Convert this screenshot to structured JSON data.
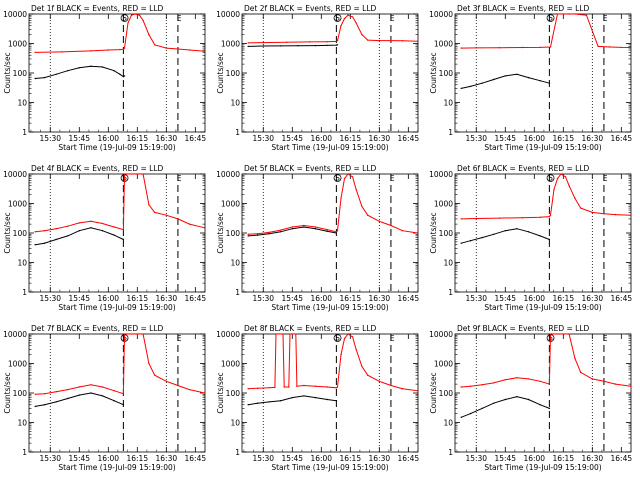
{
  "colors": {
    "events": "#000000",
    "lld": "#ff0000",
    "axes": "#000000"
  },
  "common": {
    "ylabel": "Counts/sec",
    "xlabel": "Start Time (19-Jul-09 15:19:00)",
    "yticks": [
      "1",
      "10",
      "100",
      "1000",
      "10000"
    ],
    "xticks": [
      "15:30",
      "15:45",
      "16:00",
      "16:15",
      "16:30",
      "16:45"
    ],
    "marker_s": "S",
    "marker_e": "E"
  },
  "chart_data": [
    {
      "type": "line",
      "scale_y": "log",
      "ylim": [
        1,
        10000
      ],
      "xlim": [
        15.3167,
        16.8333
      ],
      "title": "Det 1f BLACK = Events, RED = LLD",
      "series": [
        {
          "name": "Events",
          "color": "#000000",
          "x": [
            15.37,
            15.45,
            15.55,
            15.65,
            15.75,
            15.85,
            15.95,
            16.05,
            16.1,
            16.13,
            16.14
          ],
          "y": [
            65,
            70,
            90,
            120,
            150,
            170,
            160,
            120,
            90,
            75,
            80
          ]
        },
        {
          "name": "LLD",
          "color": "#ff0000",
          "x": [
            15.37,
            15.6,
            15.85,
            16.0,
            16.1,
            16.13,
            16.14,
            16.17,
            16.2,
            16.23,
            16.27,
            16.3,
            16.35,
            16.4,
            16.5,
            16.6,
            16.7,
            16.83
          ],
          "y": [
            500,
            520,
            560,
            600,
            620,
            640,
            700,
            5000,
            9000,
            10000,
            9000,
            6000,
            2000,
            900,
            700,
            650,
            600,
            550
          ]
        }
      ]
    },
    {
      "type": "line",
      "scale_y": "log",
      "ylim": [
        1,
        10000
      ],
      "xlim": [
        15.3167,
        16.8333
      ],
      "title": "Det 2f BLACK = Events, RED = LLD",
      "series": [
        {
          "name": "Events",
          "color": "#000000",
          "x": [
            15.37,
            15.5,
            15.65,
            15.8,
            15.95,
            16.05,
            16.13,
            16.14
          ],
          "y": [
            800,
            820,
            830,
            840,
            850,
            860,
            880,
            900
          ]
        },
        {
          "name": "LLD",
          "color": "#ff0000",
          "x": [
            15.37,
            15.5,
            15.7,
            15.9,
            16.05,
            16.13,
            16.14,
            16.17,
            16.2,
            16.23,
            16.27,
            16.3,
            16.35,
            16.4,
            16.5,
            16.6,
            16.7,
            16.83
          ],
          "y": [
            1050,
            1070,
            1100,
            1130,
            1150,
            1180,
            1250,
            4000,
            7000,
            9000,
            8000,
            5000,
            2000,
            1300,
            1250,
            1250,
            1230,
            1200
          ]
        }
      ]
    },
    {
      "type": "line",
      "scale_y": "log",
      "ylim": [
        1,
        10000
      ],
      "xlim": [
        15.3167,
        16.8333
      ],
      "title": "Det 3f BLACK = Events, RED = LLD",
      "series": [
        {
          "name": "Events",
          "color": "#000000",
          "x": [
            15.37,
            15.45,
            15.55,
            15.65,
            15.75,
            15.85,
            15.95,
            16.05,
            16.13
          ],
          "y": [
            30,
            35,
            45,
            60,
            80,
            90,
            70,
            55,
            45
          ]
        },
        {
          "name": "LLD",
          "color": "#ff0000",
          "x": [
            15.37,
            15.5,
            15.7,
            15.9,
            16.05,
            16.14,
            16.2,
            16.25,
            16.3,
            16.35,
            16.45,
            16.55,
            16.65,
            16.75,
            16.83
          ],
          "y": [
            700,
            710,
            720,
            730,
            740,
            760,
            10000,
            10000,
            10000,
            10000,
            9000,
            800,
            760,
            740,
            730
          ]
        }
      ]
    },
    {
      "type": "line",
      "scale_y": "log",
      "ylim": [
        1,
        10000
      ],
      "xlim": [
        15.3167,
        16.8333
      ],
      "title": "Det 4f BLACK = Events, RED = LLD",
      "series": [
        {
          "name": "Events",
          "color": "#000000",
          "x": [
            15.37,
            15.45,
            15.55,
            15.65,
            15.75,
            15.85,
            15.95,
            16.05,
            16.13
          ],
          "y": [
            40,
            45,
            60,
            80,
            120,
            150,
            120,
            85,
            60
          ]
        },
        {
          "name": "LLD",
          "color": "#ff0000",
          "x": [
            15.37,
            15.45,
            15.55,
            15.65,
            15.75,
            15.85,
            15.95,
            16.05,
            16.13,
            16.14,
            16.2,
            16.3,
            16.35,
            16.4,
            16.5,
            16.6,
            16.7,
            16.83
          ],
          "y": [
            110,
            120,
            140,
            170,
            220,
            250,
            210,
            160,
            130,
            10000,
            10000,
            10000,
            900,
            500,
            400,
            300,
            200,
            150
          ]
        }
      ]
    },
    {
      "type": "line",
      "scale_y": "log",
      "ylim": [
        1,
        10000
      ],
      "xlim": [
        15.3167,
        16.8333
      ],
      "title": "Det 5f BLACK = Events, RED = LLD",
      "series": [
        {
          "name": "Events",
          "color": "#000000",
          "x": [
            15.37,
            15.45,
            15.55,
            15.65,
            15.75,
            15.85,
            15.95,
            16.05,
            16.13
          ],
          "y": [
            80,
            85,
            95,
            110,
            140,
            160,
            140,
            115,
            100
          ]
        },
        {
          "name": "LLD",
          "color": "#ff0000",
          "x": [
            15.37,
            15.45,
            15.55,
            15.65,
            15.75,
            15.85,
            15.95,
            16.05,
            16.13,
            16.14,
            16.17,
            16.2,
            16.23,
            16.27,
            16.3,
            16.35,
            16.4,
            16.5,
            16.6,
            16.7,
            16.83
          ],
          "y": [
            90,
            95,
            105,
            125,
            160,
            180,
            160,
            130,
            110,
            120,
            1500,
            7000,
            10000,
            8000,
            3000,
            800,
            400,
            250,
            180,
            120,
            100
          ]
        }
      ]
    },
    {
      "type": "line",
      "scale_y": "log",
      "ylim": [
        1,
        10000
      ],
      "xlim": [
        15.3167,
        16.8333
      ],
      "title": "Det 6f BLACK = Events, RED = LLD",
      "series": [
        {
          "name": "Events",
          "color": "#000000",
          "x": [
            15.37,
            15.45,
            15.55,
            15.65,
            15.75,
            15.85,
            15.95,
            16.05,
            16.13
          ],
          "y": [
            45,
            55,
            70,
            90,
            120,
            140,
            110,
            80,
            60
          ]
        },
        {
          "name": "LLD",
          "color": "#ff0000",
          "x": [
            15.37,
            15.5,
            15.7,
            15.9,
            16.05,
            16.13,
            16.14,
            16.17,
            16.2,
            16.23,
            16.27,
            16.3,
            16.35,
            16.4,
            16.5,
            16.6,
            16.7,
            16.83
          ],
          "y": [
            300,
            310,
            320,
            330,
            340,
            360,
            400,
            3000,
            7000,
            10000,
            8000,
            4000,
            1500,
            700,
            500,
            450,
            420,
            400
          ]
        }
      ]
    },
    {
      "type": "line",
      "scale_y": "log",
      "ylim": [
        1,
        10000
      ],
      "xlim": [
        15.3167,
        16.8333
      ],
      "title": "Det 7f BLACK = Events, RED = LLD",
      "series": [
        {
          "name": "Events",
          "color": "#000000",
          "x": [
            15.37,
            15.45,
            15.55,
            15.65,
            15.75,
            15.85,
            15.95,
            16.05,
            16.13
          ],
          "y": [
            35,
            40,
            50,
            65,
            85,
            100,
            80,
            55,
            40
          ]
        },
        {
          "name": "LLD",
          "color": "#ff0000",
          "x": [
            15.37,
            15.45,
            15.55,
            15.65,
            15.75,
            15.85,
            15.95,
            16.05,
            16.13,
            16.14,
            16.2,
            16.3,
            16.35,
            16.4,
            16.5,
            16.6,
            16.7,
            16.83
          ],
          "y": [
            90,
            95,
            110,
            130,
            160,
            190,
            160,
            120,
            95,
            10000,
            10000,
            10000,
            1000,
            400,
            250,
            180,
            130,
            100
          ]
        }
      ]
    },
    {
      "type": "line",
      "scale_y": "log",
      "ylim": [
        1,
        10000
      ],
      "xlim": [
        15.3167,
        16.8333
      ],
      "title": "Det 8f BLACK = Events, RED = LLD",
      "series": [
        {
          "name": "Events",
          "color": "#000000",
          "x": [
            15.37,
            15.45,
            15.55,
            15.65,
            15.75,
            15.85,
            15.95,
            16.05,
            16.13
          ],
          "y": [
            40,
            45,
            50,
            55,
            70,
            80,
            70,
            60,
            55
          ]
        },
        {
          "name": "LLD",
          "color": "#ff0000",
          "x": [
            15.37,
            15.45,
            15.55,
            15.6,
            15.61,
            15.67,
            15.68,
            15.72,
            15.73,
            15.78,
            15.79,
            15.85,
            15.95,
            16.05,
            16.13,
            16.14,
            16.17,
            16.2,
            16.23,
            16.27,
            16.3,
            16.35,
            16.4,
            16.5,
            16.6,
            16.7,
            16.83
          ],
          "y": [
            140,
            145,
            150,
            155,
            10000,
            10000,
            160,
            160,
            10000,
            10000,
            170,
            180,
            170,
            160,
            150,
            160,
            2000,
            7000,
            10000,
            8000,
            3000,
            800,
            400,
            250,
            180,
            140,
            120
          ]
        }
      ]
    },
    {
      "type": "line",
      "scale_y": "log",
      "ylim": [
        1,
        10000
      ],
      "xlim": [
        15.3167,
        16.8333
      ],
      "title": "Det 9f BLACK = Events, RED = LLD",
      "series": [
        {
          "name": "Events",
          "color": "#000000",
          "x": [
            15.37,
            15.45,
            15.55,
            15.65,
            15.75,
            15.85,
            15.95,
            16.05,
            16.13
          ],
          "y": [
            15,
            20,
            30,
            45,
            60,
            75,
            60,
            40,
            30
          ]
        },
        {
          "name": "LLD",
          "color": "#ff0000",
          "x": [
            15.37,
            15.45,
            15.55,
            15.65,
            15.75,
            15.85,
            15.95,
            16.05,
            16.13,
            16.14,
            16.2,
            16.3,
            16.35,
            16.4,
            16.5,
            16.6,
            16.7,
            16.83
          ],
          "y": [
            160,
            170,
            190,
            220,
            280,
            330,
            300,
            250,
            200,
            10000,
            10000,
            10000,
            1500,
            500,
            300,
            250,
            200,
            170
          ]
        }
      ]
    }
  ]
}
